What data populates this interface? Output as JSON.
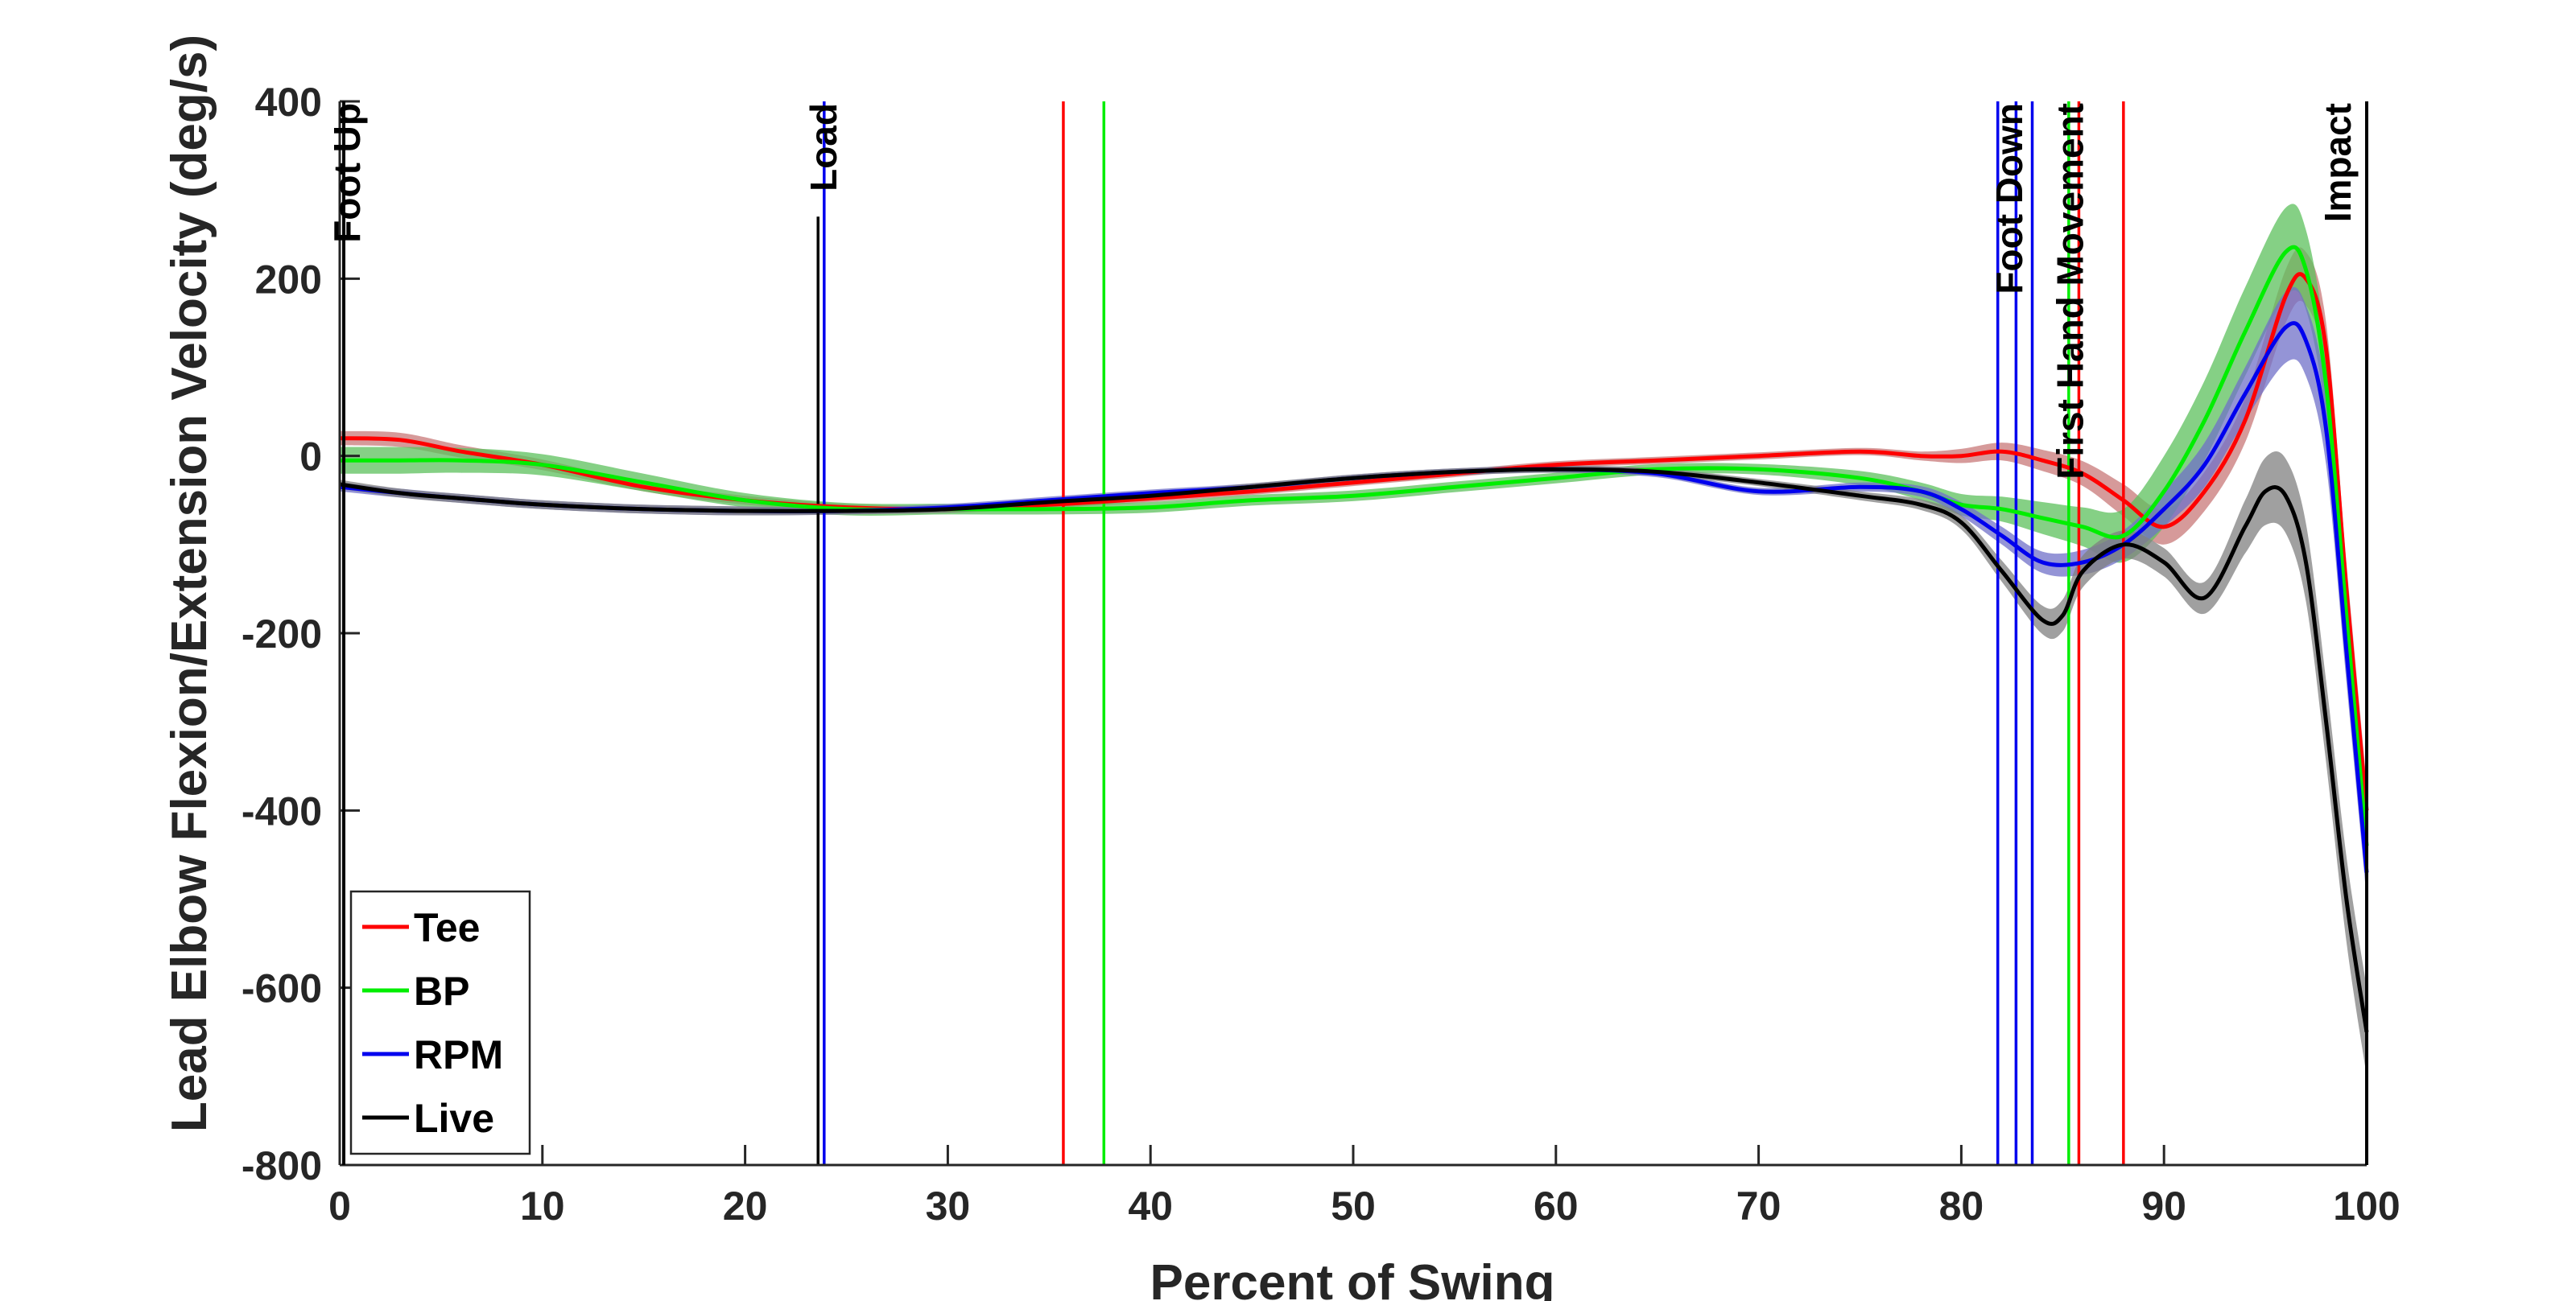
{
  "chart_data": {
    "type": "line",
    "title": "",
    "xlabel": "Percent of Swing",
    "ylabel": "Lead Elbow Flexion/Extension Velocity (deg/s)",
    "xlim": [
      0,
      100
    ],
    "ylim": [
      -800,
      400
    ],
    "xticks": [
      0,
      10,
      20,
      30,
      40,
      50,
      60,
      70,
      80,
      90,
      100
    ],
    "yticks": [
      -800,
      -600,
      -400,
      -200,
      0,
      200,
      400
    ],
    "grid": false,
    "legend_position": "bottom-left",
    "events": [
      {
        "name": "Foot Up",
        "x": 0.2
      },
      {
        "name": "Load",
        "x": 23.7
      },
      {
        "name": "Foot Down",
        "x": 82.2
      },
      {
        "name": "First Hand Movement",
        "x": 85.2
      },
      {
        "name": "Impact",
        "x": 100
      }
    ],
    "series": [
      {
        "name": "Tee",
        "color": "#ff0000",
        "band_color": "#c87878",
        "event_lines": [
          35.7,
          85.8,
          88.0
        ],
        "x": [
          0,
          3,
          6,
          10,
          15,
          20,
          25,
          30,
          35,
          40,
          45,
          50,
          55,
          60,
          65,
          70,
          75,
          78,
          80,
          82,
          84,
          86,
          88,
          90,
          92,
          94,
          96,
          97,
          98,
          99,
          100
        ],
        "y": [
          20,
          18,
          5,
          -10,
          -35,
          -50,
          -58,
          -60,
          -55,
          -48,
          -40,
          -30,
          -20,
          -10,
          -5,
          0,
          5,
          0,
          0,
          5,
          -5,
          -20,
          -50,
          -80,
          -40,
          40,
          180,
          200,
          120,
          -150,
          -400
        ],
        "spread": [
          8,
          8,
          7,
          6,
          5,
          5,
          4,
          4,
          4,
          4,
          4,
          4,
          4,
          4,
          4,
          4,
          4,
          5,
          8,
          10,
          12,
          14,
          18,
          20,
          22,
          25,
          30,
          30,
          30,
          30,
          30
        ]
      },
      {
        "name": "BP",
        "color": "#00ee00",
        "band_color": "#5cc05c",
        "event_lines": [
          37.7,
          85.3
        ],
        "x": [
          0,
          3,
          6,
          10,
          15,
          20,
          25,
          30,
          35,
          40,
          45,
          50,
          55,
          60,
          65,
          70,
          75,
          78,
          80,
          82,
          84,
          86,
          88,
          90,
          92,
          94,
          96,
          97,
          98,
          99,
          100
        ],
        "y": [
          -5,
          -5,
          -5,
          -10,
          -30,
          -50,
          -60,
          -60,
          -60,
          -58,
          -50,
          -45,
          -35,
          -25,
          -15,
          -15,
          -25,
          -40,
          -55,
          -60,
          -70,
          -80,
          -90,
          -40,
          40,
          140,
          230,
          210,
          80,
          -180,
          -440
        ],
        "spread": [
          15,
          15,
          14,
          12,
          10,
          8,
          7,
          6,
          6,
          6,
          6,
          6,
          6,
          6,
          6,
          6,
          8,
          10,
          12,
          14,
          18,
          22,
          30,
          40,
          45,
          50,
          50,
          45,
          40,
          35,
          30
        ]
      },
      {
        "name": "RPM",
        "color": "#0000ee",
        "band_color": "#7070c8",
        "event_lines": [
          23.9,
          81.8,
          82.7,
          83.5
        ],
        "x": [
          0,
          3,
          6,
          10,
          15,
          20,
          25,
          30,
          35,
          40,
          45,
          50,
          55,
          60,
          65,
          70,
          75,
          78,
          80,
          82,
          84,
          86,
          88,
          90,
          92,
          94,
          96,
          97,
          98,
          99,
          100
        ],
        "y": [
          -35,
          -42,
          -48,
          -55,
          -60,
          -62,
          -62,
          -58,
          -50,
          -42,
          -35,
          -25,
          -18,
          -15,
          -20,
          -40,
          -35,
          -40,
          -60,
          -90,
          -120,
          -120,
          -100,
          -60,
          -10,
          70,
          145,
          130,
          30,
          -220,
          -470
        ],
        "spread": [
          5,
          5,
          5,
          5,
          5,
          5,
          4,
          4,
          4,
          4,
          4,
          4,
          4,
          4,
          4,
          4,
          5,
          6,
          8,
          10,
          12,
          14,
          16,
          20,
          25,
          30,
          40,
          40,
          40,
          35,
          30
        ]
      },
      {
        "name": "Live",
        "color": "#000000",
        "band_color": "#808080",
        "event_lines": [
          23.6,
          100
        ],
        "x": [
          0,
          3,
          6,
          10,
          15,
          20,
          25,
          30,
          35,
          40,
          45,
          50,
          55,
          60,
          65,
          70,
          75,
          78,
          80,
          82,
          84,
          85,
          86,
          88,
          90,
          92,
          94,
          95,
          96,
          97,
          98,
          99,
          100
        ],
        "y": [
          -32,
          -42,
          -48,
          -55,
          -60,
          -62,
          -62,
          -60,
          -52,
          -45,
          -35,
          -25,
          -18,
          -15,
          -18,
          -30,
          -45,
          -55,
          -75,
          -130,
          -185,
          -180,
          -130,
          -100,
          -120,
          -160,
          -80,
          -40,
          -45,
          -120,
          -300,
          -500,
          -650
        ],
        "spread": [
          5,
          5,
          5,
          5,
          5,
          5,
          4,
          4,
          4,
          4,
          4,
          4,
          4,
          4,
          4,
          4,
          5,
          6,
          8,
          12,
          16,
          18,
          18,
          16,
          16,
          18,
          30,
          38,
          42,
          44,
          46,
          48,
          50
        ]
      }
    ]
  }
}
